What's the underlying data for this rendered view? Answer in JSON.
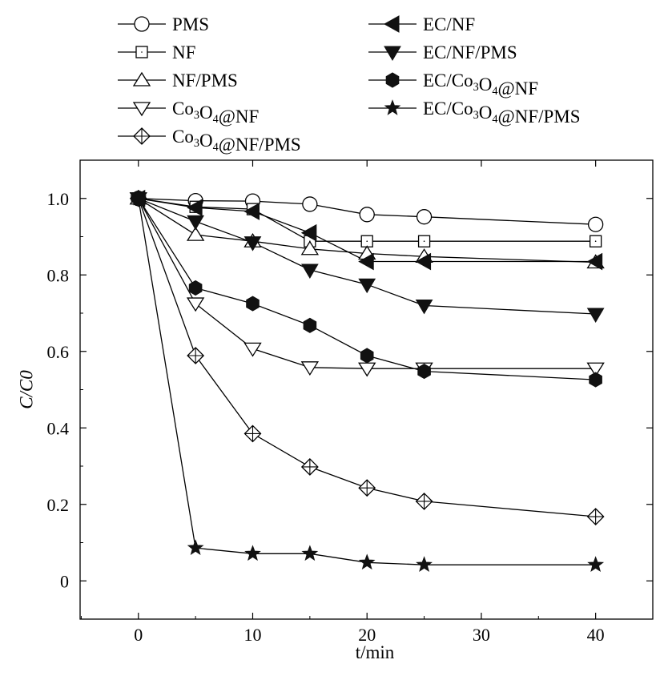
{
  "chart_data": {
    "type": "line",
    "title": "",
    "xlabel": "t/min",
    "ylabel": "C/C0",
    "xlim": [
      -5.1,
      45
    ],
    "ylim": [
      -0.1,
      1.1
    ],
    "xticks": [
      0,
      10,
      20,
      30,
      40
    ],
    "xtick_labels": [
      "0",
      "10",
      "20",
      "30",
      "40"
    ],
    "yticks": [
      0,
      0.2,
      0.4,
      0.6,
      0.8,
      1.0
    ],
    "ytick_labels": [
      "0",
      "0.2",
      "0.4",
      "0.6",
      "0.8",
      "1.0"
    ],
    "grid": false,
    "legend_placement": "top, outside plot, two columns",
    "x": [
      0,
      5,
      10,
      15,
      20,
      25,
      40
    ],
    "series": [
      {
        "name": "PMS",
        "marker": "open-circle",
        "values": [
          1.0,
          0.994,
          0.993,
          0.985,
          0.958,
          0.952,
          0.932
        ]
      },
      {
        "name": "NF",
        "marker": "open-square",
        "values": [
          1.0,
          0.978,
          0.972,
          0.888,
          0.888,
          0.888,
          0.888
        ]
      },
      {
        "name": "NF/PMS",
        "marker": "open-triangle-up",
        "values": [
          1.0,
          0.905,
          0.888,
          0.868,
          0.856,
          0.848,
          0.833
        ]
      },
      {
        "name": "Co3O4@NF",
        "marker": "open-triangle-down",
        "values": [
          1.0,
          0.725,
          0.607,
          0.558,
          0.555,
          0.555,
          0.555
        ]
      },
      {
        "name": "Co3O4@NF/PMS",
        "marker": "open-diamond-cross",
        "values": [
          1.0,
          0.589,
          0.385,
          0.298,
          0.243,
          0.208,
          0.168
        ]
      },
      {
        "name": "EC/NF",
        "marker": "filled-triangle-left",
        "values": [
          1.0,
          0.976,
          0.966,
          0.91,
          0.835,
          0.835,
          0.835
        ]
      },
      {
        "name": "EC/NF/PMS",
        "marker": "filled-triangle-down",
        "values": [
          1.0,
          0.94,
          0.885,
          0.813,
          0.775,
          0.72,
          0.698
        ]
      },
      {
        "name": "EC/Co3O4@NF",
        "marker": "filled-hexagon",
        "values": [
          1.0,
          0.766,
          0.725,
          0.668,
          0.589,
          0.548,
          0.526
        ]
      },
      {
        "name": "EC/Co3O4@NF/PMS",
        "marker": "filled-star",
        "values": [
          1.0,
          0.086,
          0.071,
          0.071,
          0.048,
          0.042,
          0.042
        ]
      }
    ]
  }
}
